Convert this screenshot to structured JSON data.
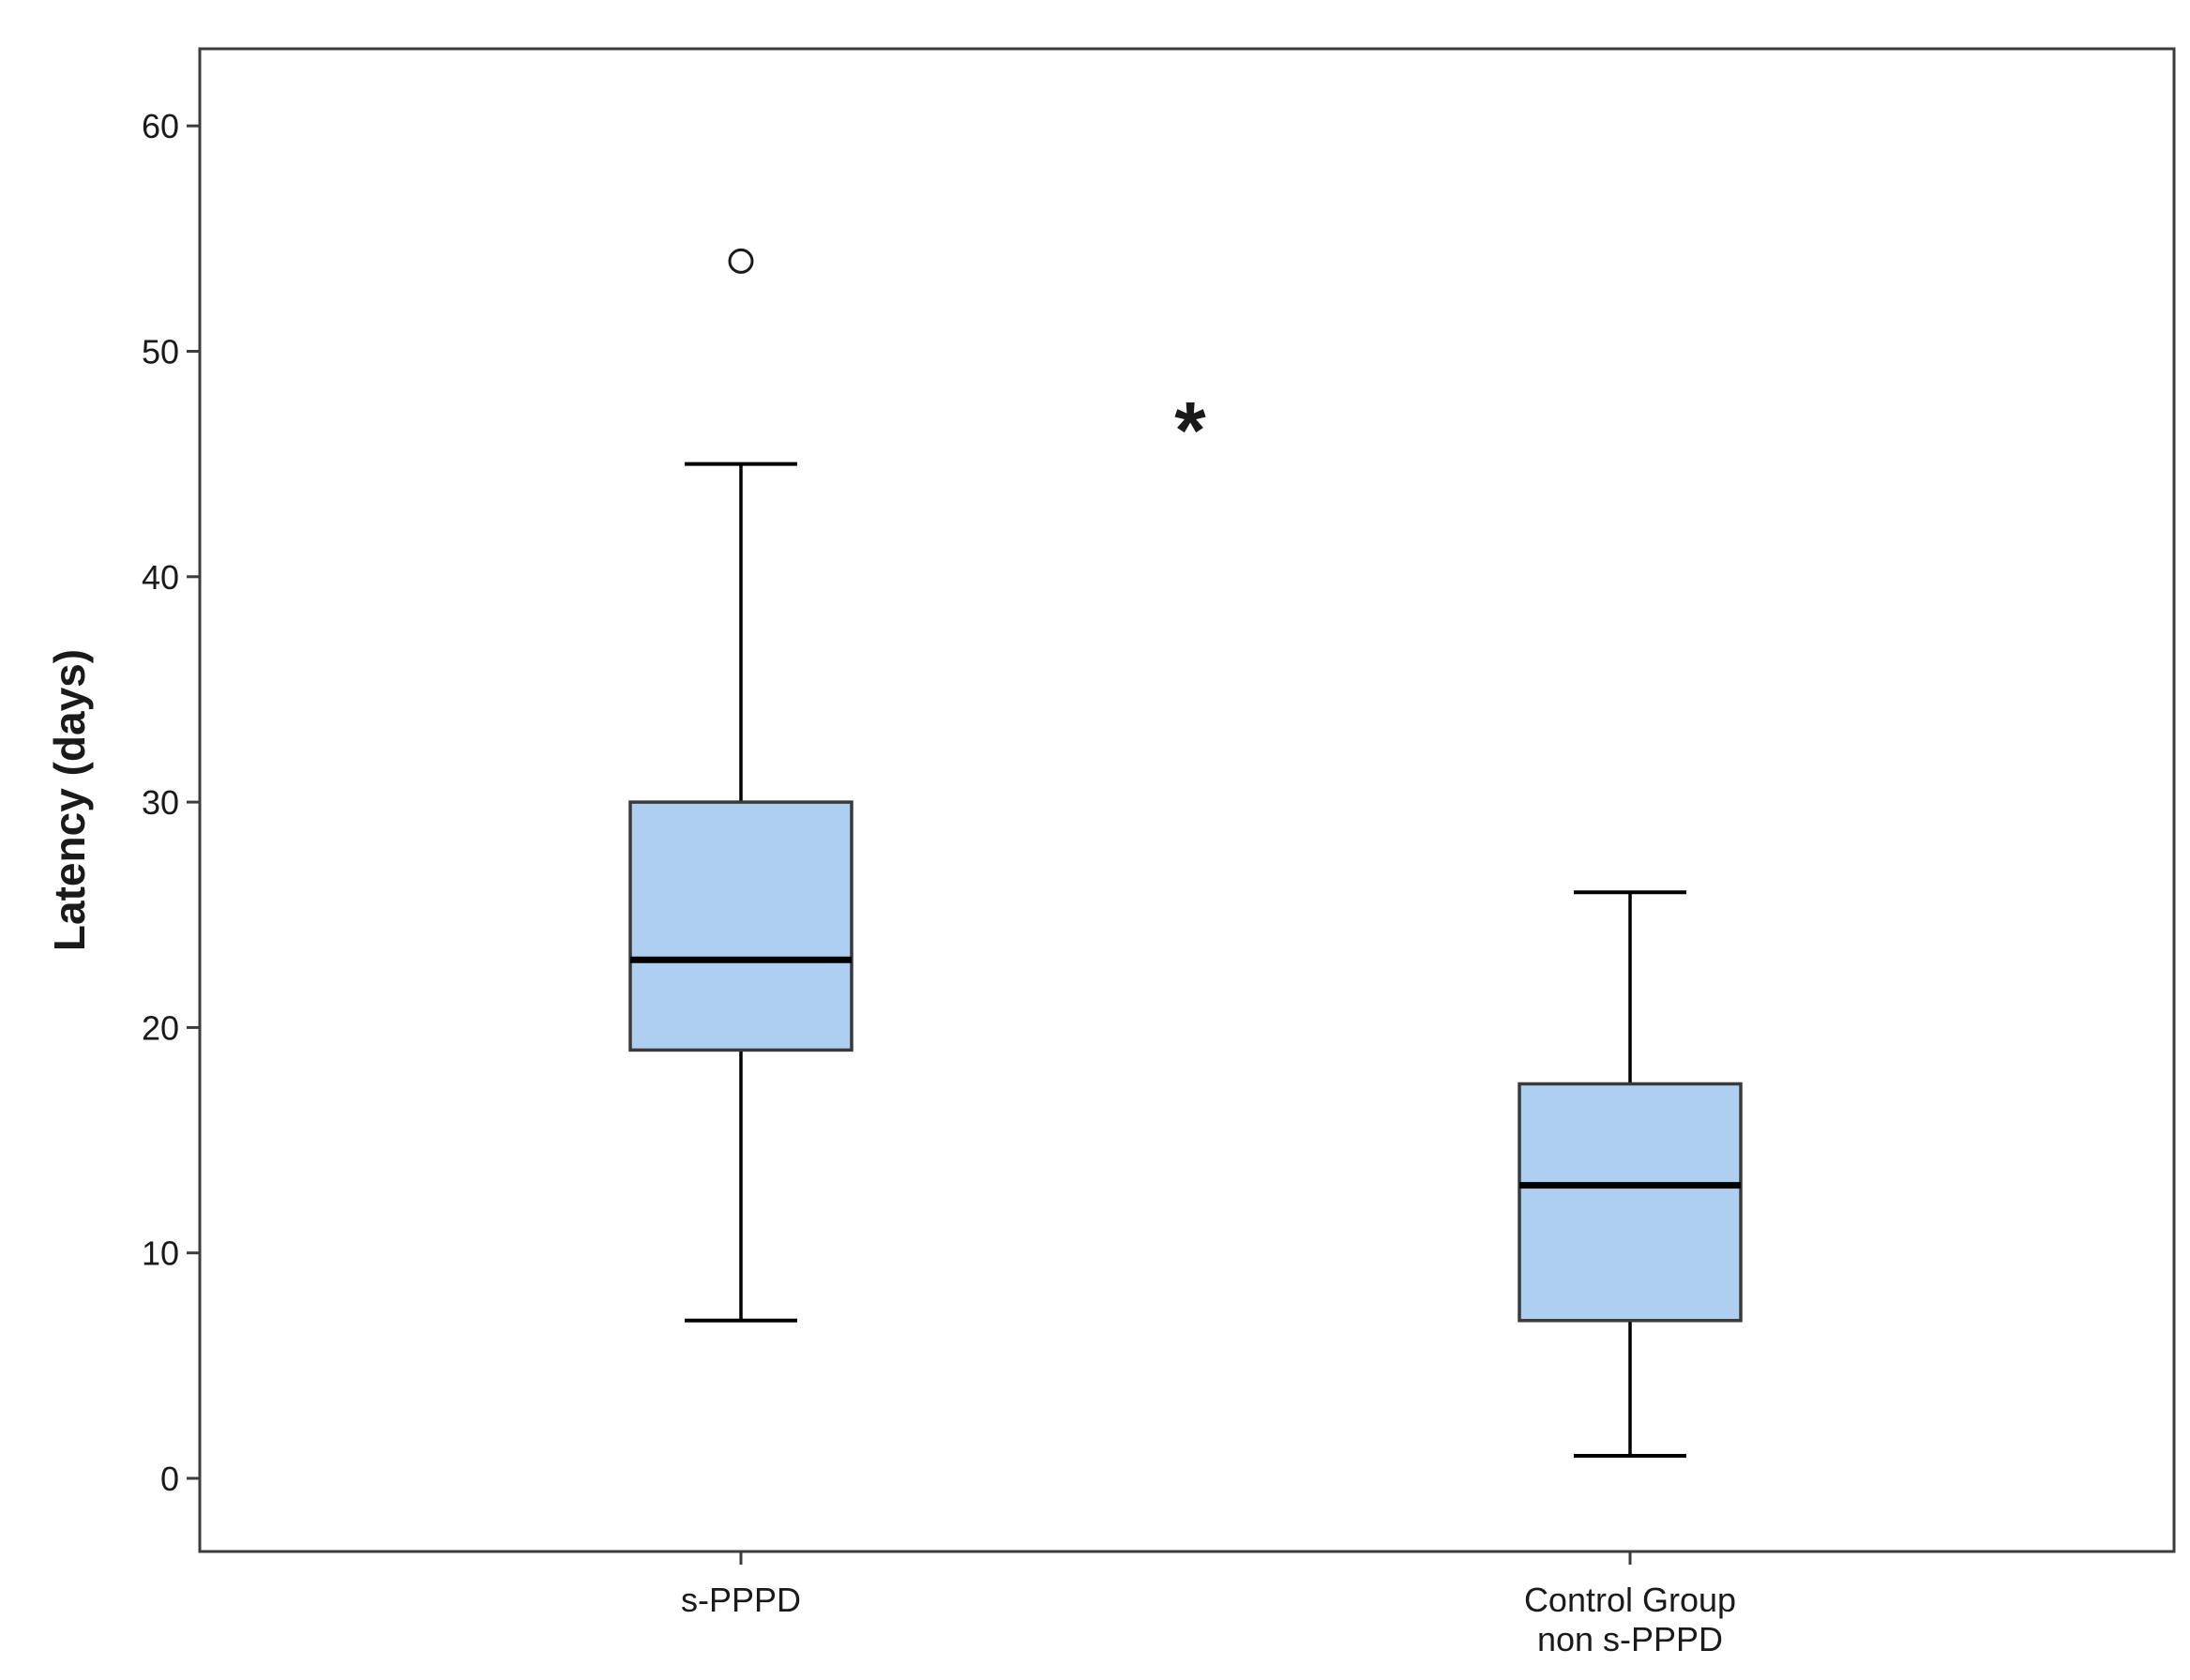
{
  "chart_data": {
    "type": "boxplot",
    "title": "",
    "xlabel": "",
    "ylabel": "Latency (days)",
    "ylim": [
      -3.5,
      63.5
    ],
    "yticks": [
      0,
      10,
      20,
      30,
      40,
      50,
      60
    ],
    "grid": false,
    "legend": "none",
    "box_color": "#aecff0",
    "line_color": "#000000",
    "categories": [
      {
        "label_lines": [
          "s-PPPD"
        ]
      },
      {
        "label_lines": [
          "Control Group",
          "non s-PPPD"
        ]
      }
    ],
    "boxes": [
      {
        "min": 7,
        "q1": 19,
        "median": 23,
        "q3": 30,
        "max": 45,
        "outliers": [
          54
        ]
      },
      {
        "min": 1,
        "q1": 7,
        "median": 13,
        "q3": 17.5,
        "max": 26,
        "outliers": []
      }
    ],
    "annotations": [
      {
        "text": "*",
        "between": [
          0,
          1
        ],
        "y": 46.5
      }
    ]
  }
}
